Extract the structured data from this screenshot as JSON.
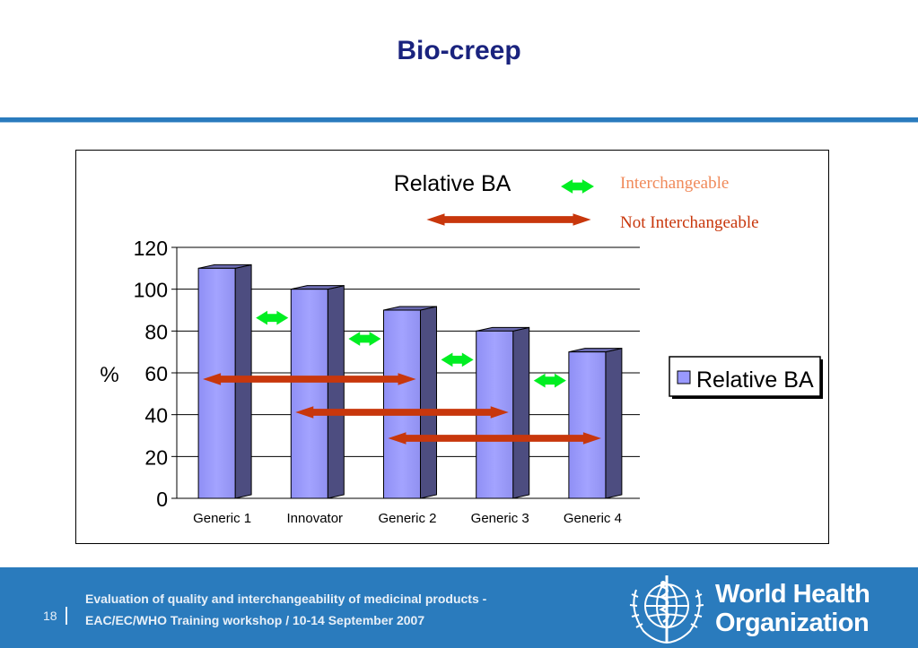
{
  "slide": {
    "title": "Bio-creep",
    "page_number": "18",
    "footer_line1": "Evaluation of quality and interchangeability of medicinal products -",
    "footer_line2": "EAC/EC/WHO Training workshop / 10-14 September 2007",
    "org_line1": "World Health",
    "org_line2": "Organization"
  },
  "colors": {
    "title": "#1a237e",
    "band": "#2a7bbd",
    "bar_front": "#9999ff",
    "bar_side": "#4d4d80",
    "green_arrow": "#00ee22",
    "red_arrow": "#c8370c"
  },
  "chart_data": {
    "type": "bar",
    "title": "Relative BA",
    "ylabel": "%",
    "xlabel": "",
    "categories": [
      "Generic 1",
      "Innovator",
      "Generic 2",
      "Generic 3",
      "Generic 4"
    ],
    "series": [
      {
        "name": "Relative BA",
        "values": [
          110,
          100,
          90,
          80,
          70
        ]
      }
    ],
    "ylim": [
      0,
      120
    ],
    "yticks": [
      0,
      20,
      40,
      60,
      80,
      100,
      120
    ],
    "grid": true,
    "legend": "right",
    "annotations": {
      "interchangeable_label": "Interchangeable",
      "not_interchangeable_label": "Not Interchangeable",
      "interchangeable_pairs": [
        [
          "Generic 1",
          "Innovator"
        ],
        [
          "Innovator",
          "Generic 2"
        ],
        [
          "Generic 2",
          "Generic 3"
        ],
        [
          "Generic 3",
          "Generic 4"
        ]
      ],
      "not_interchangeable_pairs": [
        [
          "Generic 1",
          "Generic 2"
        ],
        [
          "Innovator",
          "Generic 3"
        ],
        [
          "Generic 2",
          "Generic 4"
        ]
      ]
    }
  }
}
